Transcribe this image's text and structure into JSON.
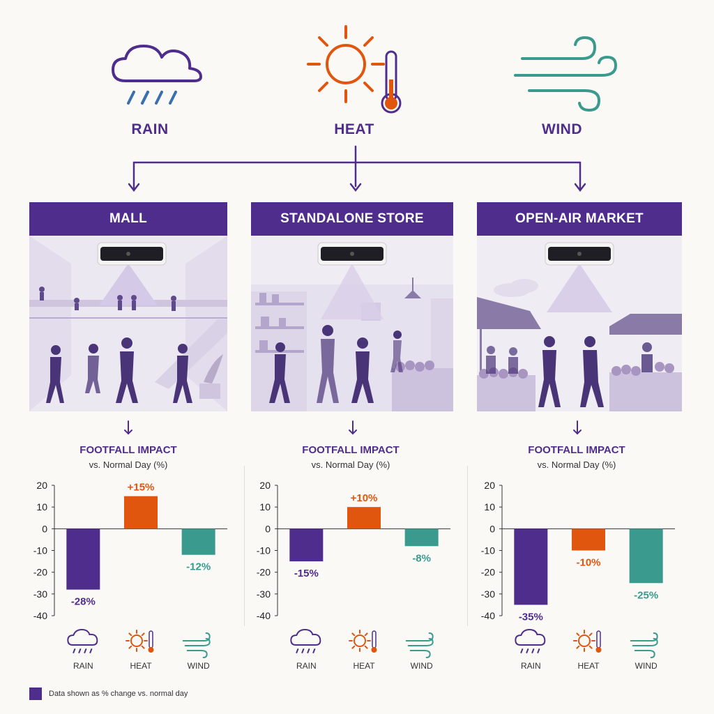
{
  "weather": {
    "rain": "RAIN",
    "heat": "HEAT",
    "wind": "WIND"
  },
  "venues": {
    "mall": "MALL",
    "standalone": "STANDALONE STORE",
    "market": "OPEN-AIR MARKET"
  },
  "impact": {
    "title": "FOOTFALL IMPACT",
    "subtitle": "vs. Normal Day (%)"
  },
  "colors": {
    "rain": "#4f2d8c",
    "heat": "#e0560f",
    "wind": "#3a9a8e",
    "banner": "#4f2d8c"
  },
  "legend": "Data shown as % change vs. normal day",
  "chart_data": [
    {
      "type": "bar",
      "panel": "MALL",
      "categories": [
        "RAIN",
        "HEAT",
        "WIND"
      ],
      "values": [
        -28,
        15,
        -12
      ],
      "labels": [
        "-28%",
        "+15%",
        "-12%"
      ],
      "ylim": [
        -40,
        20
      ],
      "yticks": [
        20,
        10,
        0,
        -10,
        -20,
        -30,
        -40
      ],
      "grid": false
    },
    {
      "type": "bar",
      "panel": "STANDALONE STORE",
      "categories": [
        "RAIN",
        "HEAT",
        "WIND"
      ],
      "values": [
        -15,
        10,
        -8
      ],
      "labels": [
        "-15%",
        "+10%",
        "-8%"
      ],
      "ylim": [
        -40,
        20
      ],
      "yticks": [
        20,
        10,
        0,
        -10,
        -20,
        -30,
        -40
      ],
      "grid": false
    },
    {
      "type": "bar",
      "panel": "OPEN-AIR MARKET",
      "categories": [
        "RAIN",
        "HEAT",
        "WIND"
      ],
      "values": [
        -35,
        -10,
        -25
      ],
      "labels": [
        "-35%",
        "-10%",
        "-25%"
      ],
      "ylim": [
        -40,
        20
      ],
      "yticks": [
        20,
        10,
        0,
        -10,
        -20,
        -30,
        -40
      ],
      "grid": false
    }
  ]
}
